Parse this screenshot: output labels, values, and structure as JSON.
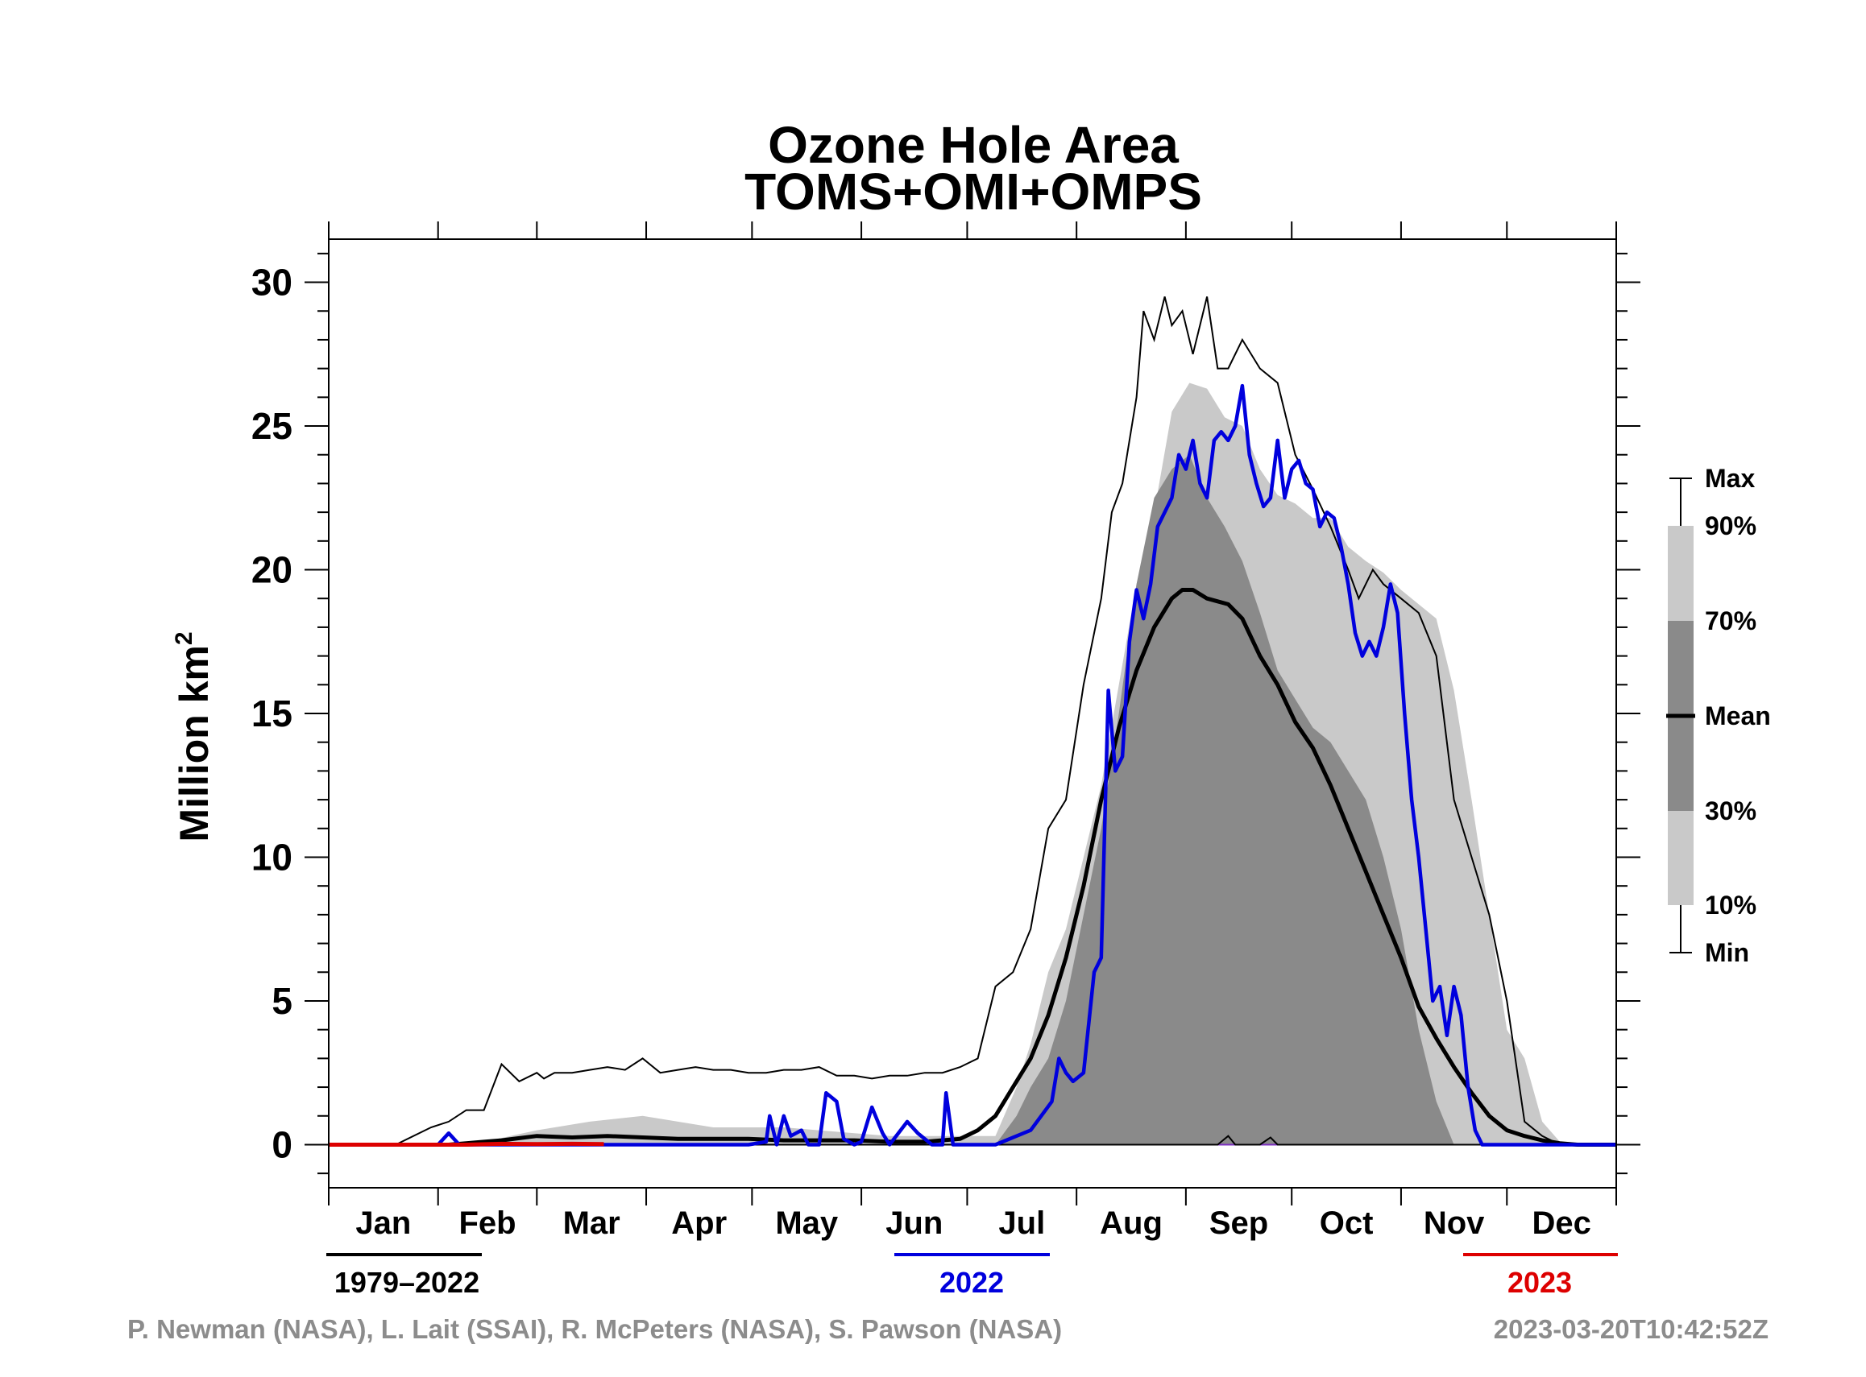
{
  "chart_data": {
    "type": "area",
    "title": "Ozone Hole Area",
    "subtitle": "TOMS+OMI+OMPS",
    "ylabel": "Million km",
    "ylabel_superscript": "2",
    "ylim": [
      -1.5,
      31.5
    ],
    "yticks": [
      "0",
      "5",
      "10",
      "15",
      "20",
      "25",
      "30"
    ],
    "ytick_values": [
      0,
      5,
      10,
      15,
      20,
      25,
      30
    ],
    "xlim": [
      1,
      366
    ],
    "x_unit": "day of year",
    "months": [
      "Jan",
      "Feb",
      "Mar",
      "Apr",
      "May",
      "Jun",
      "Jul",
      "Aug",
      "Sep",
      "Oct",
      "Nov",
      "Dec"
    ],
    "month_starts": [
      1,
      32,
      60,
      91,
      121,
      152,
      182,
      213,
      244,
      274,
      305,
      335,
      366
    ],
    "legend": {
      "placement": "right",
      "labels": [
        "Max",
        "90%",
        "70%",
        "Mean",
        "30%",
        "10%",
        "Min"
      ]
    },
    "period_labels": [
      {
        "text": "1979–2022",
        "color": "#000000"
      },
      {
        "text": "2022",
        "color": "#0000dd"
      },
      {
        "text": "2023",
        "color": "#dd0000"
      }
    ],
    "colors": {
      "band_10_90": "#c9c9c9",
      "band_30_70": "#8a8a8a",
      "mean": "#000000",
      "max_min": "#000000",
      "series_2022": "#0000dd",
      "series_2023": "#dd0000",
      "zero_line": "#7b2fbf"
    },
    "series": [
      {
        "name": "Max",
        "x": [
          1,
          20,
          30,
          35,
          40,
          45,
          50,
          55,
          60,
          62,
          65,
          70,
          75,
          80,
          85,
          90,
          95,
          100,
          105,
          110,
          115,
          120,
          125,
          130,
          135,
          140,
          145,
          150,
          155,
          160,
          165,
          170,
          175,
          180,
          185,
          190,
          195,
          200,
          205,
          210,
          215,
          220,
          223,
          226,
          230,
          232,
          235,
          238,
          240,
          243,
          246,
          250,
          253,
          256,
          260,
          265,
          270,
          275,
          280,
          285,
          290,
          293,
          297,
          300,
          305,
          310,
          315,
          320,
          325,
          330,
          335,
          340,
          345,
          350,
          355,
          358,
          361,
          366
        ],
        "values": [
          0,
          0,
          0.6,
          0.8,
          1.2,
          1.2,
          2.8,
          2.2,
          2.5,
          2.3,
          2.5,
          2.5,
          2.6,
          2.7,
          2.6,
          3.0,
          2.5,
          2.6,
          2.7,
          2.6,
          2.6,
          2.5,
          2.5,
          2.6,
          2.6,
          2.7,
          2.4,
          2.4,
          2.3,
          2.4,
          2.4,
          2.5,
          2.5,
          2.7,
          3.0,
          5.5,
          6.0,
          7.5,
          11.0,
          12.0,
          16.0,
          19.0,
          22.0,
          23.0,
          26.0,
          29.0,
          28.0,
          29.5,
          28.5,
          29.0,
          27.5,
          29.5,
          27.0,
          27.0,
          28.0,
          27.0,
          26.5,
          24.0,
          22.8,
          21.5,
          20.0,
          19.0,
          20.0,
          19.5,
          19.0,
          18.5,
          17.0,
          12.0,
          10.0,
          8.0,
          5.0,
          0.8,
          0.3,
          0,
          0,
          0,
          0,
          0
        ]
      },
      {
        "name": "90%",
        "x": [
          1,
          30,
          45,
          60,
          75,
          90,
          100,
          110,
          120,
          130,
          140,
          150,
          160,
          170,
          180,
          190,
          196,
          200,
          205,
          210,
          215,
          220,
          225,
          230,
          235,
          240,
          245,
          250,
          255,
          260,
          265,
          270,
          275,
          280,
          285,
          290,
          295,
          300,
          305,
          310,
          315,
          320,
          325,
          330,
          335,
          340,
          345,
          350,
          355,
          366
        ],
        "values": [
          0,
          0,
          0.1,
          0.5,
          0.8,
          1.0,
          0.8,
          0.6,
          0.6,
          0.6,
          0.5,
          0.4,
          0.3,
          0.3,
          0.3,
          0.3,
          2.0,
          3.5,
          6.0,
          7.5,
          10.0,
          12.5,
          16.0,
          19.5,
          22.0,
          25.5,
          26.5,
          26.3,
          25.3,
          25.0,
          23.5,
          22.6,
          22.3,
          21.8,
          21.8,
          20.8,
          20.3,
          19.9,
          19.3,
          18.8,
          18.3,
          15.8,
          12.0,
          8.0,
          4.0,
          3.0,
          0.8,
          0.1,
          0,
          0
        ]
      },
      {
        "name": "70%",
        "x": [
          1,
          185,
          190,
          196,
          200,
          205,
          210,
          215,
          220,
          225,
          230,
          235,
          240,
          245,
          250,
          255,
          260,
          265,
          270,
          275,
          280,
          285,
          290,
          295,
          300,
          305,
          310,
          315,
          320,
          325,
          330,
          335,
          340,
          345,
          350,
          366
        ],
        "values": [
          0,
          0,
          0,
          1.0,
          2.0,
          3.0,
          5.0,
          8.0,
          11.0,
          15.0,
          19.5,
          22.5,
          23.5,
          24.0,
          22.5,
          21.5,
          20.3,
          18.5,
          16.5,
          15.5,
          14.5,
          14.0,
          13.0,
          12.0,
          10.0,
          7.5,
          4.0,
          1.5,
          0,
          0,
          0,
          0,
          0,
          0,
          0,
          0
        ]
      },
      {
        "name": "Mean",
        "x": [
          1,
          20,
          30,
          35,
          40,
          45,
          50,
          60,
          70,
          80,
          90,
          100,
          110,
          120,
          130,
          140,
          150,
          160,
          170,
          180,
          185,
          190,
          195,
          200,
          205,
          210,
          215,
          220,
          225,
          230,
          235,
          240,
          243,
          246,
          250,
          253,
          256,
          260,
          265,
          270,
          275,
          280,
          285,
          290,
          295,
          300,
          305,
          310,
          315,
          320,
          325,
          330,
          335,
          340,
          345,
          350,
          355,
          360,
          363,
          366
        ],
        "values": [
          0,
          0,
          0,
          0,
          0.05,
          0.1,
          0.15,
          0.3,
          0.25,
          0.3,
          0.25,
          0.2,
          0.2,
          0.2,
          0.15,
          0.15,
          0.15,
          0.1,
          0.1,
          0.2,
          0.5,
          1.0,
          2.0,
          3.0,
          4.5,
          6.5,
          9.0,
          12.0,
          14.5,
          16.5,
          18.0,
          19.0,
          19.3,
          19.3,
          19.0,
          18.9,
          18.8,
          18.3,
          17.0,
          16.0,
          14.7,
          13.8,
          12.5,
          11.0,
          9.5,
          8.0,
          6.5,
          4.8,
          3.7,
          2.7,
          1.8,
          1.0,
          0.5,
          0.3,
          0.15,
          0.05,
          0,
          0,
          0,
          0
        ]
      },
      {
        "name": "30%",
        "x": [
          1,
          195,
          200,
          205,
          210,
          215,
          220,
          225,
          230,
          235,
          240,
          245,
          250,
          255,
          260,
          265,
          270,
          275,
          280,
          285,
          290,
          295,
          300,
          305,
          310,
          315,
          320,
          325,
          366
        ],
        "values": [
          0,
          0,
          0,
          0,
          0,
          0,
          0,
          0,
          0,
          0,
          0,
          0,
          0,
          0,
          0,
          0,
          0,
          0,
          0,
          0,
          0,
          0,
          0,
          0,
          0,
          0,
          0,
          0,
          0
        ]
      },
      {
        "name": "10%",
        "x": [
          1,
          210,
          215,
          220,
          225,
          230,
          235,
          240,
          245,
          250,
          255,
          260,
          265,
          270,
          275,
          280,
          285,
          290,
          295,
          300,
          366
        ],
        "values": [
          0,
          0,
          0,
          0,
          0,
          0,
          0,
          0,
          0,
          0,
          0,
          0,
          0,
          0,
          0,
          0,
          0,
          0,
          0,
          0,
          0
        ]
      },
      {
        "name": "Min",
        "x": [
          1,
          250,
          253,
          256,
          258,
          260,
          262,
          265,
          268,
          270,
          366
        ],
        "values": [
          0,
          0,
          0,
          0.3,
          0,
          0,
          0,
          0,
          0.25,
          0,
          0
        ]
      },
      {
        "name": "2022",
        "x": [
          1,
          32,
          35,
          38,
          40,
          80,
          90,
          120,
          125,
          126,
          128,
          130,
          132,
          135,
          137,
          140,
          142,
          145,
          147,
          150,
          152,
          155,
          158,
          160,
          165,
          168,
          172,
          175,
          176,
          178,
          180,
          183,
          190,
          200,
          206,
          208,
          210,
          212,
          215,
          218,
          220,
          222,
          224,
          226,
          228,
          230,
          232,
          234,
          236,
          238,
          240,
          242,
          244,
          246,
          248,
          250,
          252,
          254,
          256,
          258,
          260,
          262,
          264,
          266,
          268,
          270,
          272,
          274,
          276,
          278,
          280,
          282,
          284,
          286,
          288,
          290,
          292,
          294,
          296,
          298,
          300,
          302,
          304,
          306,
          308,
          310,
          312,
          314,
          316,
          318,
          320,
          322,
          324,
          326,
          328,
          330,
          332,
          334,
          336,
          366
        ],
        "values": [
          0,
          0,
          0.4,
          0,
          0,
          0,
          0,
          0,
          0.1,
          1.0,
          0,
          1.0,
          0.3,
          0.5,
          0,
          0,
          1.8,
          1.5,
          0.2,
          0,
          0.1,
          1.3,
          0.4,
          0,
          0.8,
          0.4,
          0,
          0,
          1.8,
          0,
          0,
          0,
          0,
          0.5,
          1.5,
          3.0,
          2.5,
          2.2,
          2.5,
          6.0,
          6.5,
          15.8,
          13.0,
          13.5,
          17.5,
          19.3,
          18.3,
          19.5,
          21.5,
          22.0,
          22.5,
          24.0,
          23.5,
          24.5,
          23.0,
          22.5,
          24.5,
          24.8,
          24.5,
          25.0,
          26.4,
          24.0,
          23.0,
          22.2,
          22.5,
          24.5,
          22.5,
          23.5,
          23.8,
          23.0,
          22.8,
          21.5,
          22.0,
          21.8,
          20.8,
          19.5,
          17.8,
          17.0,
          17.5,
          17.0,
          18.0,
          19.5,
          18.5,
          15.0,
          12.0,
          10.0,
          7.5,
          5.0,
          5.5,
          3.8,
          5.5,
          4.5,
          2.0,
          0.5,
          0,
          0,
          0,
          0,
          0,
          0
        ]
      },
      {
        "name": "2023",
        "x": [
          1,
          10,
          20,
          30,
          40,
          50,
          60,
          70,
          79
        ],
        "values": [
          0,
          0,
          0,
          0,
          0,
          0.03,
          0.02,
          0.03,
          0.02
        ]
      }
    ]
  },
  "legend_labels": {
    "max": "Max",
    "p90": "90%",
    "p70": "70%",
    "mean": "Mean",
    "p30": "30%",
    "p10": "10%",
    "min": "Min"
  },
  "periods": {
    "climatology": "1979–2022",
    "year_2022": "2022",
    "year_2023": "2023"
  },
  "credits": "P. Newman (NASA), L. Lait (SSAI), R. McPeters (NASA), S. Pawson (NASA)",
  "timestamp": "2023-03-20T10:42:52Z"
}
